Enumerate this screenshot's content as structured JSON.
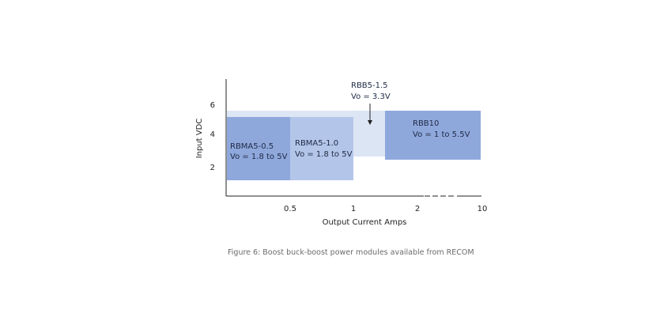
{
  "caption": "Figure 6: Boost buck-boost power modules available from RECOM",
  "chart_data": {
    "type": "area",
    "xlabel": "Output Current Amps",
    "ylabel": "Input VDC",
    "x_ticks": [
      "0.5",
      "1",
      "2",
      "10"
    ],
    "y_ticks": [
      "2",
      "4",
      "6"
    ],
    "colors": {
      "background_band": "#dde6f4",
      "rbb5": "#dce5f3",
      "rbma5_05": "#8fa8dc",
      "rbma5_10": "#b3c5e9",
      "rbb10": "#8fa8dc"
    },
    "regions": [
      {
        "name": "RBMA5-0.5",
        "line1": "RBMA5-0.5",
        "line2": "Vo = 1.8 to 5V"
      },
      {
        "name": "RBMA5-1.0",
        "line1": "RBMA5-1.0",
        "line2": "Vo = 1.8 to 5V"
      },
      {
        "name": "RBB5-1.5",
        "line1": "RBB5-1.5",
        "line2": "Vo = 3.3V"
      },
      {
        "name": "RBB10",
        "line1": "RBB10",
        "line2": "Vo = 1 to 5.5V"
      }
    ]
  }
}
